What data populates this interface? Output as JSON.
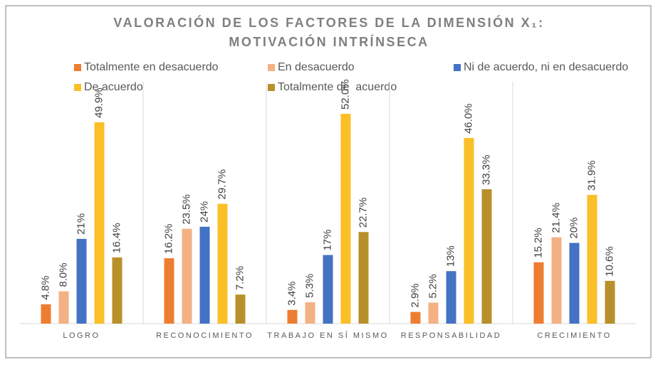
{
  "chart_data": {
    "type": "bar",
    "title": [
      "VALORACIÓN DE LOS FACTORES DE LA DIMENSIÓN X₁:",
      "MOTIVACIÓN INTRÍNSECA"
    ],
    "categories": [
      "LOGRO",
      "RECONOCIMIENTO",
      "TRABAJO EN SÍ MISMO",
      "RESPONSABILIDAD",
      "CRECIMIENTO"
    ],
    "series": [
      {
        "name": "Totalmente en desacuerdo",
        "color": "#ed7d31",
        "values": [
          4.8,
          16.2,
          3.4,
          2.9,
          15.2
        ],
        "value_labels": [
          "4.8%",
          "16.2%",
          "3.4%",
          "2.9%",
          "15.2%"
        ]
      },
      {
        "name": "En desacuerdo",
        "color": "#f4b183",
        "values": [
          8.0,
          23.5,
          5.3,
          5.2,
          21.4
        ],
        "value_labels": [
          "8.0%",
          "23.5%",
          "5.3%",
          "5.2%",
          "21.4%"
        ]
      },
      {
        "name": "Ni de acuerdo, ni en desacuerdo",
        "color": "#4472c4",
        "values": [
          21,
          24,
          17,
          13,
          20
        ],
        "value_labels": [
          "21%",
          "24%",
          "17%",
          "13%",
          "20%"
        ]
      },
      {
        "name": "De acuerdo",
        "color": "#fbbf28",
        "values": [
          49.9,
          29.7,
          52.0,
          46.0,
          31.9
        ],
        "value_labels": [
          "49.9%",
          "29.7%",
          "52.0%",
          "46.0%",
          "31.9%"
        ]
      },
      {
        "name": "Totalmente de  acuerdo",
        "color": "#b8902b",
        "values": [
          16.4,
          7.2,
          22.7,
          33.3,
          10.6
        ],
        "value_labels": [
          "16.4%",
          "7.2%",
          "22.7%",
          "33.3%",
          "10.6%"
        ]
      }
    ],
    "legend": "top"
  }
}
